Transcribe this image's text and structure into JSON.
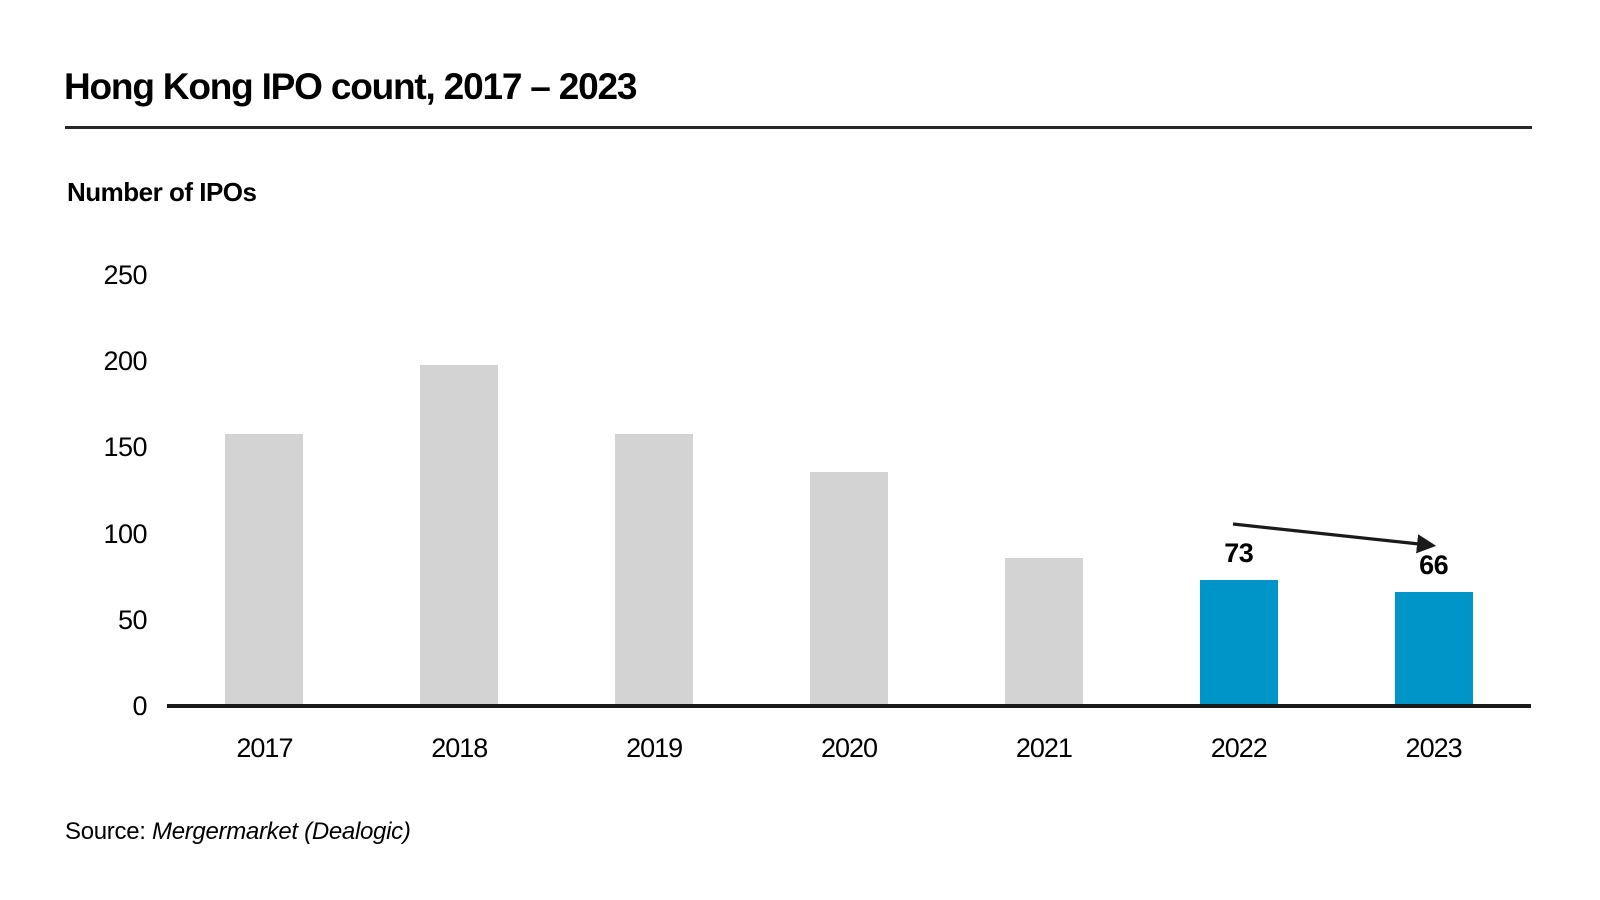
{
  "title": "Hong Kong IPO count, 2017 – 2023",
  "y_axis_label": "Number of IPOs",
  "source": {
    "prefix": "Source:",
    "text": "Mergermarket (Dealogic)"
  },
  "colors": {
    "default_bar": "#d3d3d3",
    "highlight_bar": "#0095c8",
    "axis": "#1a1a1a",
    "text": "#000000"
  },
  "chart_data": {
    "type": "bar",
    "title": "Hong Kong IPO count, 2017 – 2023",
    "xlabel": "",
    "ylabel": "Number of IPOs",
    "categories": [
      "2017",
      "2018",
      "2019",
      "2020",
      "2021",
      "2022",
      "2023"
    ],
    "values": [
      158,
      198,
      158,
      136,
      86,
      73,
      66
    ],
    "data_labels": {
      "2022": "73",
      "2023": "66"
    },
    "highlighted": [
      "2022",
      "2023"
    ],
    "y_ticks": [
      0,
      50,
      100,
      150,
      200,
      250
    ],
    "ylim": [
      0,
      250
    ],
    "grid": false,
    "legend": "none",
    "annotation": "black arrow sloping down from above 2022 bar to above 2023 bar"
  }
}
